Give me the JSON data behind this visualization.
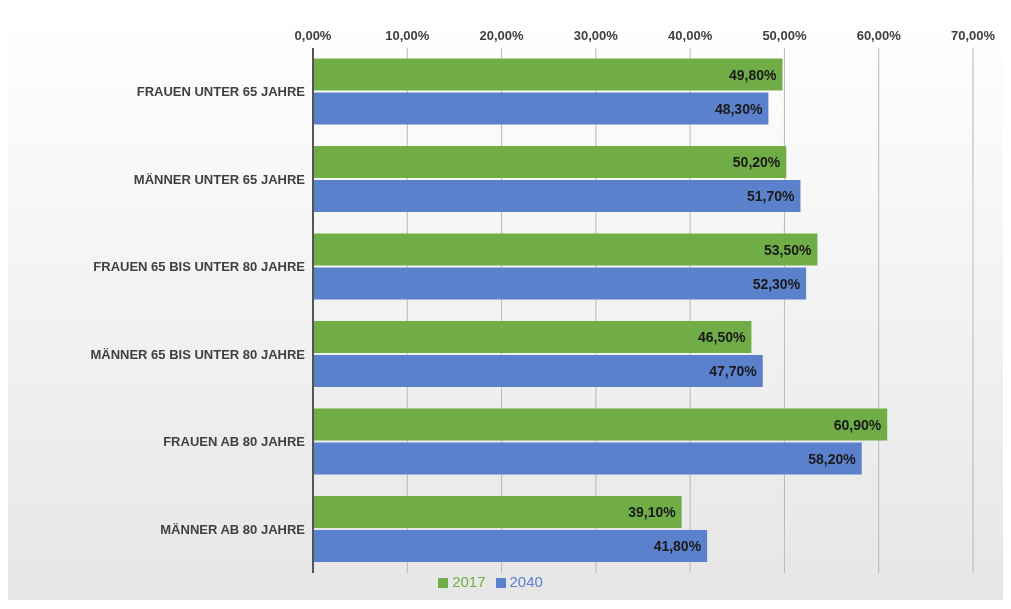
{
  "chart_data": {
    "type": "bar",
    "orientation": "horizontal",
    "categories": [
      "FRAUEN UNTER 65 JAHRE",
      "MÄNNER UNTER 65 JAHRE",
      "FRAUEN 65 BIS UNTER 80 JAHRE",
      "MÄNNER 65 BIS UNTER 80 JAHRE",
      "FRAUEN AB 80 JAHRE",
      "MÄNNER AB 80 JAHRE"
    ],
    "series": [
      {
        "name": "2017",
        "color": "#70ad47",
        "values": [
          49.8,
          50.2,
          53.5,
          46.5,
          60.9,
          39.1
        ],
        "value_labels": [
          "49,80%",
          "50,20%",
          "53,50%",
          "46,50%",
          "60,90%",
          "39,10%"
        ]
      },
      {
        "name": "2040",
        "color": "#5b80cc",
        "values": [
          48.3,
          51.7,
          52.3,
          47.7,
          58.2,
          41.8
        ],
        "value_labels": [
          "48,30%",
          "51,70%",
          "52,30%",
          "47,70%",
          "58,20%",
          "41,80%"
        ]
      }
    ],
    "xlim": [
      0,
      70
    ],
    "xticks": [
      {
        "value": 0,
        "label": "0,00%"
      },
      {
        "value": 10,
        "label": "10,00%"
      },
      {
        "value": 20,
        "label": "20,00%"
      },
      {
        "value": 30,
        "label": "30,00%"
      },
      {
        "value": 40,
        "label": "40,00%"
      },
      {
        "value": 50,
        "label": "50,00%"
      },
      {
        "value": 60,
        "label": "60,00%"
      },
      {
        "value": 70,
        "label": "70,00%"
      }
    ],
    "grid": "x",
    "legend": "bottom"
  }
}
